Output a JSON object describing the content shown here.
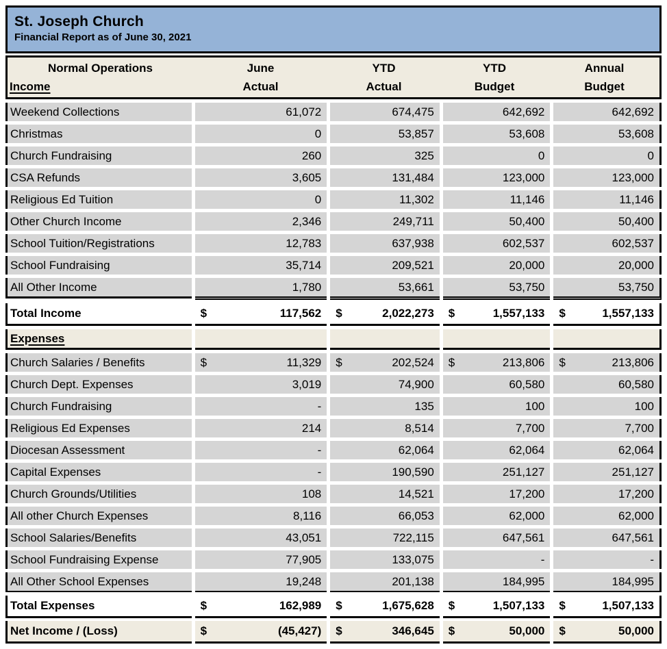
{
  "title": {
    "name": "St. Joseph Church",
    "subtitle": "Financial Report as of June 30, 2021"
  },
  "table_header": {
    "group": "Normal Operations",
    "income_label": "Income",
    "columns": [
      {
        "top": "June",
        "bottom": "Actual"
      },
      {
        "top": "YTD",
        "bottom": "Actual"
      },
      {
        "top": "YTD",
        "bottom": "Budget"
      },
      {
        "top": "Annual",
        "bottom": "Budget"
      }
    ]
  },
  "income": {
    "rows": [
      {
        "label": "Weekend Collections",
        "values": [
          "61,072",
          "674,475",
          "642,692",
          "642,692"
        ]
      },
      {
        "label": "Christmas",
        "values": [
          "0",
          "53,857",
          "53,608",
          "53,608"
        ]
      },
      {
        "label": "Church Fundraising",
        "values": [
          "260",
          "325",
          "0",
          "0"
        ]
      },
      {
        "label": "CSA Refunds",
        "values": [
          "3,605",
          "131,484",
          "123,000",
          "123,000"
        ]
      },
      {
        "label": "Religious Ed Tuition",
        "values": [
          "0",
          "11,302",
          "11,146",
          "11,146"
        ]
      },
      {
        "label": "Other Church Income",
        "values": [
          "2,346",
          "249,711",
          "50,400",
          "50,400"
        ]
      },
      {
        "label": "School Tuition/Registrations",
        "values": [
          "12,783",
          "637,938",
          "602,537",
          "602,537"
        ]
      },
      {
        "label": "School Fundraising",
        "values": [
          "35,714",
          "209,521",
          "20,000",
          "20,000"
        ]
      },
      {
        "label": "All Other Income",
        "values": [
          "1,780",
          "53,661",
          "53,750",
          "53,750"
        ]
      }
    ],
    "total": {
      "label": "Total Income",
      "currency": "$",
      "values": [
        "117,562",
        "2,022,273",
        "1,557,133",
        "1,557,133"
      ]
    }
  },
  "expenses": {
    "section_label": "Expenses",
    "rows": [
      {
        "label": "Church Salaries / Benefits",
        "currency": "$",
        "values": [
          "11,329",
          "202,524",
          "213,806",
          "213,806"
        ]
      },
      {
        "label": "Church Dept. Expenses",
        "values": [
          "3,019",
          "74,900",
          "60,580",
          "60,580"
        ]
      },
      {
        "label": "Church Fundraising",
        "values": [
          "-",
          "135",
          "100",
          "100"
        ]
      },
      {
        "label": "Religious Ed Expenses",
        "values": [
          "214",
          "8,514",
          "7,700",
          "7,700"
        ]
      },
      {
        "label": "Diocesan Assessment",
        "values": [
          "-",
          "62,064",
          "62,064",
          "62,064"
        ]
      },
      {
        "label": "Capital Expenses",
        "values": [
          "-",
          "190,590",
          "251,127",
          "251,127"
        ]
      },
      {
        "label": "Church Grounds/Utilities",
        "values": [
          "108",
          "14,521",
          "17,200",
          "17,200"
        ]
      },
      {
        "label": "All other Church Expenses",
        "values": [
          "8,116",
          "66,053",
          "62,000",
          "62,000"
        ]
      },
      {
        "label": "School Salaries/Benefits",
        "values": [
          "43,051",
          "722,115",
          "647,561",
          "647,561"
        ]
      },
      {
        "label": "School Fundraising Expense",
        "values": [
          "77,905",
          "133,075",
          "-",
          "-"
        ]
      },
      {
        "label": "All Other School Expenses",
        "values": [
          "19,248",
          "201,138",
          "184,995",
          "184,995"
        ]
      }
    ],
    "total": {
      "label": "Total Expenses",
      "currency": "$",
      "values": [
        "162,989",
        "1,675,628",
        "1,507,133",
        "1,507,133"
      ]
    }
  },
  "net": {
    "label": "Net Income / (Loss)",
    "currency": "$",
    "values": [
      "(45,427)",
      "346,645",
      "50,000",
      "50,000"
    ]
  },
  "colors": {
    "banner_blue": "#95B3D7",
    "header_cream": "#EFEBE0",
    "cell_gray": "#D5D5D5",
    "border_black": "#000000"
  }
}
